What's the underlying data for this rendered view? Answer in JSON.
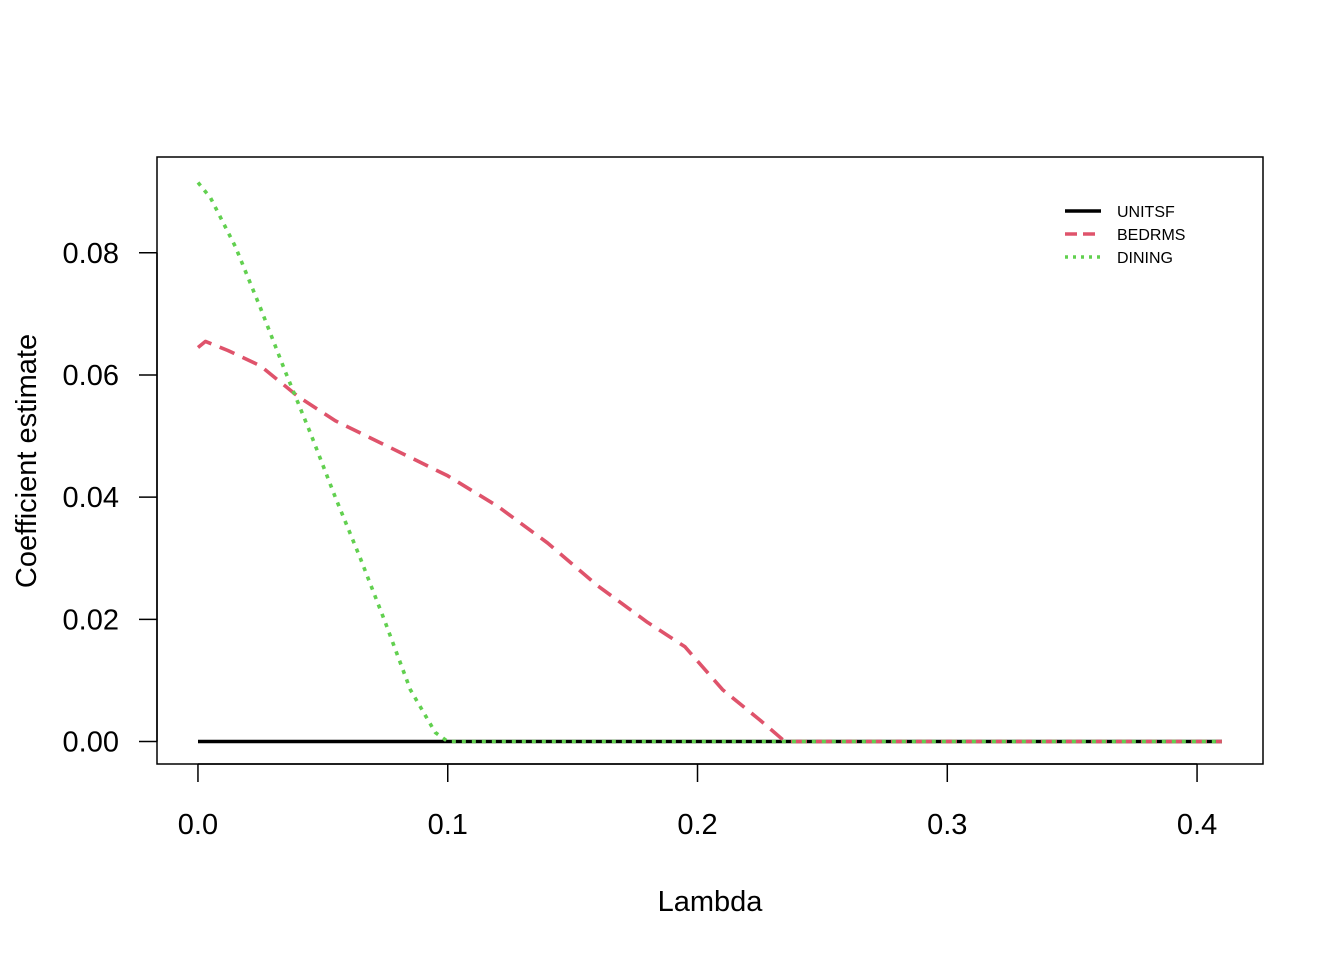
{
  "chart_data": {
    "type": "line",
    "title": "",
    "xlabel": "Lambda",
    "ylabel": "Coefficient estimate",
    "xlim": [
      -0.0164,
      0.4264
    ],
    "ylim": [
      -0.00368,
      0.09568
    ],
    "x_ticks": [
      0.0,
      0.1,
      0.2,
      0.3,
      0.4
    ],
    "x_tick_labels": [
      "0.0",
      "0.1",
      "0.2",
      "0.3",
      "0.4"
    ],
    "y_ticks": [
      0.0,
      0.02,
      0.04,
      0.06,
      0.08
    ],
    "y_tick_labels": [
      "0.00",
      "0.02",
      "0.04",
      "0.06",
      "0.08"
    ],
    "grid": false,
    "legend_position": "top-right",
    "series": [
      {
        "name": "UNITSF",
        "color": "#000000",
        "dash": "solid",
        "x": [
          0.0,
          0.41
        ],
        "y": [
          0.0,
          0.0
        ]
      },
      {
        "name": "BEDRMS",
        "color": "#DF536B",
        "dash": "dashed",
        "x": [
          0.0,
          0.003,
          0.012,
          0.025,
          0.04,
          0.055,
          0.07,
          0.085,
          0.1,
          0.12,
          0.14,
          0.16,
          0.18,
          0.195,
          0.21,
          0.225,
          0.235,
          0.26,
          0.3,
          0.35,
          0.41
        ],
        "y": [
          0.0645,
          0.0655,
          0.064,
          0.0615,
          0.0565,
          0.0525,
          0.0495,
          0.0465,
          0.0435,
          0.0385,
          0.0325,
          0.0255,
          0.0195,
          0.0155,
          0.0085,
          0.0035,
          0.0,
          0.0,
          0.0,
          0.0,
          0.0
        ]
      },
      {
        "name": "DINING",
        "color": "#61D04F",
        "dash": "dotted",
        "x": [
          0.0,
          0.005,
          0.015,
          0.025,
          0.035,
          0.045,
          0.055,
          0.065,
          0.075,
          0.085,
          0.095,
          0.1,
          0.15,
          0.2,
          0.3,
          0.41
        ],
        "y": [
          0.0915,
          0.089,
          0.081,
          0.071,
          0.0605,
          0.0505,
          0.04,
          0.03,
          0.0195,
          0.0085,
          0.0015,
          0.0,
          0.0,
          0.0,
          0.0,
          0.0
        ]
      }
    ]
  }
}
